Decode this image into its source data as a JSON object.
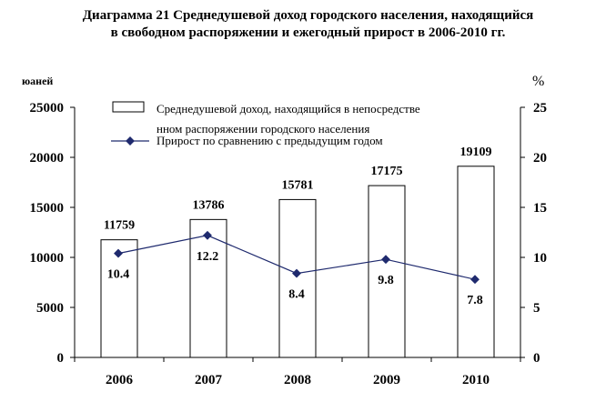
{
  "title_line1": "Диаграмма 21 Среднедушевой доход городского населения, находящийся",
  "title_line2": "в свободном распоряжении и ежегодный прирост в 2006-2010 гг.",
  "chart_data": {
    "type": "bar",
    "categories": [
      "2006",
      "2007",
      "2008",
      "2009",
      "2010"
    ],
    "series": [
      {
        "name": "Среднедушевой доход, находящийся в непосредственном распоряжении городского населения",
        "legend_line1": "Среднедушевой доход, находящийся в непосредстве",
        "legend_line2": "нном распоряжении городского населения",
        "type": "bar",
        "axis": "left",
        "values": [
          11759,
          13786,
          15781,
          17175,
          19109
        ],
        "labels": [
          "11759",
          "13786",
          "15781",
          "17175",
          "19109"
        ]
      },
      {
        "name": "Прирост по сравнению с предыдущим годом",
        "type": "line",
        "axis": "right",
        "values": [
          10.4,
          12.2,
          8.4,
          9.8,
          7.8
        ],
        "labels": [
          "10.4",
          "12.2",
          "8.4",
          "9.8",
          "7.8"
        ]
      }
    ],
    "ylabel": "юаней",
    "y2label": "%",
    "ylim": [
      0,
      25000
    ],
    "y2lim": [
      0,
      25
    ],
    "yticks": [
      "0",
      "5000",
      "10000",
      "15000",
      "20000",
      "25000"
    ],
    "y2ticks": [
      "0",
      "5",
      "10",
      "15",
      "20",
      "25"
    ],
    "grid": false,
    "legend_position": "top",
    "colors": {
      "bar_fill": "#ffffff",
      "bar_stroke": "#000000",
      "line": "#1f2a6e"
    }
  }
}
